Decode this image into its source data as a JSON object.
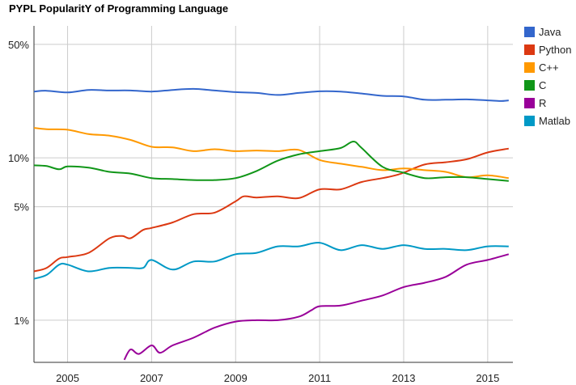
{
  "chart_data": {
    "type": "line",
    "title": "PYPL PopularitY of Programming Language",
    "y_scale": "log",
    "ylim": [
      0.55,
      65
    ],
    "xlim": [
      2004.2,
      2015.6
    ],
    "y_ticks": [
      {
        "value": 50,
        "label": "50%"
      },
      {
        "value": 10,
        "label": "10%"
      },
      {
        "value": 5,
        "label": "5%"
      },
      {
        "value": 1,
        "label": "1%"
      }
    ],
    "x_ticks": [
      {
        "value": 2005,
        "label": "2005"
      },
      {
        "value": 2007,
        "label": "2007"
      },
      {
        "value": 2009,
        "label": "2009"
      },
      {
        "value": 2011,
        "label": "2011"
      },
      {
        "value": 2013,
        "label": "2013"
      },
      {
        "value": 2015,
        "label": "2015"
      }
    ],
    "grid": true,
    "legend_position": "right",
    "series": [
      {
        "name": "Java",
        "color": "#3366cc",
        "points": [
          [
            2004.2,
            25.6
          ],
          [
            2004.5,
            25.9
          ],
          [
            2005.0,
            25.3
          ],
          [
            2005.5,
            26.2
          ],
          [
            2006.0,
            26.0
          ],
          [
            2006.5,
            26.0
          ],
          [
            2007.0,
            25.6
          ],
          [
            2007.5,
            26.2
          ],
          [
            2008.0,
            26.6
          ],
          [
            2008.5,
            26.0
          ],
          [
            2009.0,
            25.4
          ],
          [
            2009.5,
            25.1
          ],
          [
            2010.0,
            24.4
          ],
          [
            2010.5,
            25.1
          ],
          [
            2011.0,
            25.7
          ],
          [
            2011.5,
            25.6
          ],
          [
            2012.0,
            24.9
          ],
          [
            2012.5,
            24.1
          ],
          [
            2013.0,
            23.9
          ],
          [
            2013.5,
            22.8
          ],
          [
            2014.0,
            22.8
          ],
          [
            2014.5,
            22.9
          ],
          [
            2015.0,
            22.6
          ],
          [
            2015.3,
            22.4
          ],
          [
            2015.5,
            22.6
          ]
        ]
      },
      {
        "name": "Python",
        "color": "#dc3912",
        "points": [
          [
            2004.2,
            2.0
          ],
          [
            2004.5,
            2.1
          ],
          [
            2004.8,
            2.4
          ],
          [
            2005.0,
            2.45
          ],
          [
            2005.5,
            2.6
          ],
          [
            2006.0,
            3.2
          ],
          [
            2006.3,
            3.3
          ],
          [
            2006.5,
            3.2
          ],
          [
            2006.8,
            3.6
          ],
          [
            2007.0,
            3.7
          ],
          [
            2007.5,
            4.0
          ],
          [
            2008.0,
            4.5
          ],
          [
            2008.5,
            4.6
          ],
          [
            2009.0,
            5.4
          ],
          [
            2009.2,
            5.8
          ],
          [
            2009.5,
            5.7
          ],
          [
            2010.0,
            5.8
          ],
          [
            2010.5,
            5.65
          ],
          [
            2011.0,
            6.4
          ],
          [
            2011.5,
            6.4
          ],
          [
            2012.0,
            7.1
          ],
          [
            2012.5,
            7.5
          ],
          [
            2012.8,
            7.8
          ],
          [
            2013.0,
            8.1
          ],
          [
            2013.5,
            9.1
          ],
          [
            2014.0,
            9.4
          ],
          [
            2014.5,
            9.8
          ],
          [
            2015.0,
            10.8
          ],
          [
            2015.5,
            11.4
          ]
        ]
      },
      {
        "name": "C++",
        "color": "#ff9900",
        "points": [
          [
            2004.2,
            15.3
          ],
          [
            2004.5,
            15.0
          ],
          [
            2005.0,
            14.9
          ],
          [
            2005.5,
            14.0
          ],
          [
            2006.0,
            13.7
          ],
          [
            2006.5,
            12.9
          ],
          [
            2007.0,
            11.7
          ],
          [
            2007.5,
            11.6
          ],
          [
            2008.0,
            11.0
          ],
          [
            2008.5,
            11.3
          ],
          [
            2009.0,
            11.0
          ],
          [
            2009.5,
            11.1
          ],
          [
            2010.0,
            11.0
          ],
          [
            2010.5,
            11.2
          ],
          [
            2011.0,
            9.7
          ],
          [
            2011.5,
            9.2
          ],
          [
            2012.0,
            8.8
          ],
          [
            2012.5,
            8.4
          ],
          [
            2013.0,
            8.6
          ],
          [
            2013.5,
            8.4
          ],
          [
            2014.0,
            8.2
          ],
          [
            2014.5,
            7.6
          ],
          [
            2015.0,
            7.8
          ],
          [
            2015.5,
            7.5
          ]
        ]
      },
      {
        "name": "C",
        "color": "#109618",
        "points": [
          [
            2004.2,
            9.0
          ],
          [
            2004.5,
            8.9
          ],
          [
            2004.8,
            8.5
          ],
          [
            2005.0,
            8.85
          ],
          [
            2005.5,
            8.7
          ],
          [
            2006.0,
            8.2
          ],
          [
            2006.5,
            8.0
          ],
          [
            2007.0,
            7.5
          ],
          [
            2007.5,
            7.4
          ],
          [
            2008.0,
            7.3
          ],
          [
            2008.5,
            7.3
          ],
          [
            2009.0,
            7.5
          ],
          [
            2009.5,
            8.3
          ],
          [
            2010.0,
            9.6
          ],
          [
            2010.5,
            10.5
          ],
          [
            2011.0,
            11.0
          ],
          [
            2011.5,
            11.5
          ],
          [
            2011.8,
            12.6
          ],
          [
            2012.0,
            11.5
          ],
          [
            2012.5,
            8.8
          ],
          [
            2013.0,
            8.1
          ],
          [
            2013.5,
            7.5
          ],
          [
            2014.0,
            7.6
          ],
          [
            2014.5,
            7.6
          ],
          [
            2015.0,
            7.4
          ],
          [
            2015.5,
            7.2
          ]
        ]
      },
      {
        "name": "R",
        "color": "#990099",
        "points": [
          [
            2006.35,
            0.57
          ],
          [
            2006.5,
            0.66
          ],
          [
            2006.7,
            0.62
          ],
          [
            2007.0,
            0.7
          ],
          [
            2007.2,
            0.63
          ],
          [
            2007.5,
            0.7
          ],
          [
            2008.0,
            0.78
          ],
          [
            2008.5,
            0.9
          ],
          [
            2009.0,
            0.98
          ],
          [
            2009.5,
            1.0
          ],
          [
            2010.0,
            1.0
          ],
          [
            2010.5,
            1.05
          ],
          [
            2010.8,
            1.15
          ],
          [
            2011.0,
            1.22
          ],
          [
            2011.5,
            1.23
          ],
          [
            2012.0,
            1.32
          ],
          [
            2012.5,
            1.42
          ],
          [
            2013.0,
            1.6
          ],
          [
            2013.5,
            1.7
          ],
          [
            2014.0,
            1.85
          ],
          [
            2014.5,
            2.2
          ],
          [
            2015.0,
            2.35
          ],
          [
            2015.5,
            2.55
          ]
        ]
      },
      {
        "name": "Matlab",
        "color": "#0099c6",
        "points": [
          [
            2004.2,
            1.8
          ],
          [
            2004.5,
            1.9
          ],
          [
            2004.8,
            2.2
          ],
          [
            2005.0,
            2.2
          ],
          [
            2005.5,
            2.0
          ],
          [
            2006.0,
            2.1
          ],
          [
            2006.5,
            2.1
          ],
          [
            2006.8,
            2.1
          ],
          [
            2007.0,
            2.35
          ],
          [
            2007.5,
            2.05
          ],
          [
            2008.0,
            2.3
          ],
          [
            2008.5,
            2.3
          ],
          [
            2009.0,
            2.55
          ],
          [
            2009.5,
            2.6
          ],
          [
            2010.0,
            2.85
          ],
          [
            2010.5,
            2.85
          ],
          [
            2011.0,
            3.0
          ],
          [
            2011.5,
            2.7
          ],
          [
            2012.0,
            2.9
          ],
          [
            2012.5,
            2.75
          ],
          [
            2013.0,
            2.9
          ],
          [
            2013.5,
            2.75
          ],
          [
            2014.0,
            2.75
          ],
          [
            2014.5,
            2.7
          ],
          [
            2015.0,
            2.85
          ],
          [
            2015.5,
            2.85
          ]
        ]
      }
    ]
  }
}
